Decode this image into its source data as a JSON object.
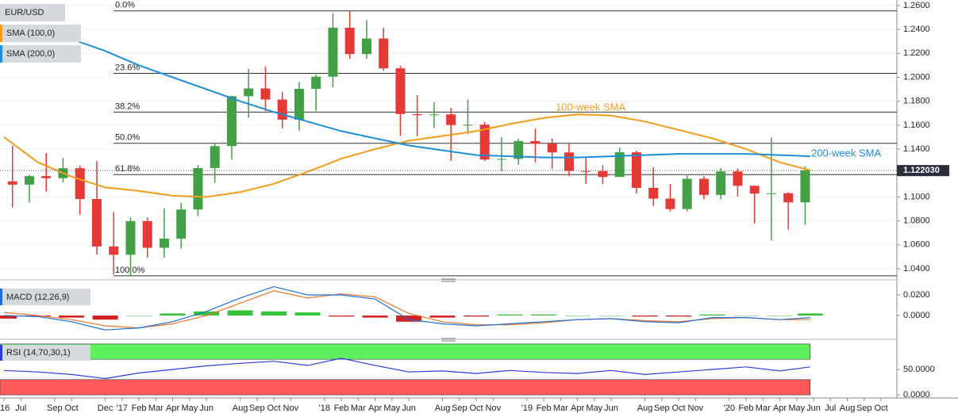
{
  "chart_data": [
    {
      "type": "candlestick",
      "title": "EUR/USD",
      "x": [
        0.5,
        1.5,
        2.5,
        3.5,
        4.5,
        5.5,
        6.5,
        7.5,
        8.5,
        9.5,
        10.5,
        11.5,
        12.5,
        13.5,
        14.5,
        15.5,
        16.5,
        17.5,
        18.5,
        19.5,
        20.5,
        21.5,
        22.5,
        23.5,
        24.5,
        25.5,
        26.5,
        27.5,
        28.5,
        29.5,
        30.5,
        31.5,
        32.5,
        33.5,
        34.5,
        35.5,
        36.5,
        37.5,
        38.5,
        39.5,
        40.5,
        41.5,
        42.5,
        43.5,
        44.5,
        45.5,
        46.5,
        47.5
      ],
      "open": [
        1.113,
        1.1103,
        1.1174,
        1.1157,
        1.124,
        1.0983,
        1.0586,
        1.0517,
        1.0798,
        1.0575,
        1.0652,
        1.0895,
        1.1242,
        1.1425,
        1.1842,
        1.1907,
        1.1814,
        1.1646,
        1.1904,
        1.2005,
        1.2414,
        1.2194,
        1.2324,
        1.2075,
        1.1693,
        1.1684,
        1.169,
        1.1601,
        1.1604,
        1.1313,
        1.1318,
        1.1467,
        1.1445,
        1.1372,
        1.1217,
        1.1216,
        1.1167,
        1.1373,
        1.1076,
        1.0986,
        1.0899,
        1.1152,
        1.1017,
        1.1213,
        1.1093,
        1.1028,
        1.1031,
        1.0955
      ],
      "high": [
        1.1428,
        1.1185,
        1.1366,
        1.1327,
        1.126,
        1.13,
        1.0874,
        1.0829,
        1.0829,
        1.0906,
        1.0951,
        1.1268,
        1.1446,
        1.1846,
        1.207,
        1.2092,
        1.188,
        1.1961,
        1.2023,
        1.2537,
        1.2555,
        1.2476,
        1.2414,
        1.2097,
        1.1852,
        1.1791,
        1.1744,
        1.1815,
        1.1625,
        1.15,
        1.1486,
        1.157,
        1.1489,
        1.1448,
        1.1324,
        1.1265,
        1.1412,
        1.1387,
        1.1249,
        1.1109,
        1.1179,
        1.1175,
        1.124,
        1.1239,
        1.1096,
        1.1496,
        1.1039,
        1.1255
      ],
      "low": [
        1.0912,
        1.0952,
        1.1045,
        1.1122,
        1.0852,
        1.0518,
        1.0352,
        1.034,
        1.0494,
        1.0493,
        1.0569,
        1.0839,
        1.1118,
        1.1313,
        1.1662,
        1.1717,
        1.1574,
        1.1554,
        1.1717,
        1.1916,
        1.2153,
        1.2155,
        1.2056,
        1.151,
        1.1508,
        1.1576,
        1.1301,
        1.1526,
        1.1301,
        1.1216,
        1.1269,
        1.1289,
        1.1234,
        1.1176,
        1.111,
        1.1106,
        1.1181,
        1.1028,
        1.0926,
        1.0879,
        1.0879,
        1.0981,
        1.0981,
        1.1002,
        1.0778,
        1.0636,
        1.0727,
        1.0767
      ],
      "close": [
        1.1103,
        1.1174,
        1.1157,
        1.124,
        1.0983,
        1.0586,
        1.0517,
        1.0798,
        1.0575,
        1.0652,
        1.0895,
        1.1242,
        1.1425,
        1.1842,
        1.1907,
        1.1814,
        1.1646,
        1.1904,
        1.2005,
        1.2414,
        1.2194,
        1.2324,
        1.2075,
        1.1693,
        1.1684,
        1.169,
        1.1601,
        1.1604,
        1.1313,
        1.1318,
        1.1467,
        1.1445,
        1.1372,
        1.1217,
        1.1216,
        1.1167,
        1.1373,
        1.1076,
        1.0986,
        1.0899,
        1.1152,
        1.1017,
        1.1213,
        1.1093,
        1.1028,
        1.1031,
        1.0955,
        1.1221
      ],
      "up_color": "#43a047",
      "down_color": "#e53935",
      "series": [
        {
          "name": "SMA (100,0)",
          "color": "#f59c1a",
          "annotation": "100-week SMA",
          "x": [
            0,
            2,
            4,
            6,
            8,
            10,
            12,
            14,
            16,
            18,
            20,
            22,
            24,
            26,
            28,
            30,
            32,
            34,
            36,
            38,
            40,
            42,
            44,
            46,
            47.8
          ],
          "values": [
            1.15,
            1.129,
            1.117,
            1.108,
            1.105,
            1.101,
            1.1,
            1.104,
            1.111,
            1.121,
            1.132,
            1.14,
            1.147,
            1.151,
            1.155,
            1.161,
            1.166,
            1.169,
            1.168,
            1.163,
            1.156,
            1.149,
            1.14,
            1.129,
            1.1222
          ]
        },
        {
          "name": "SMA (200,0)",
          "color": "#1e8ed6",
          "annotation": "200-week SMA",
          "x": [
            0,
            2,
            4,
            6,
            8,
            10,
            12,
            14,
            16,
            18,
            20,
            22,
            24,
            26,
            28,
            30,
            32,
            34,
            36,
            38,
            40,
            42,
            44,
            46,
            47.8
          ],
          "values": [
            1.242,
            1.238,
            1.232,
            1.222,
            1.21,
            1.2,
            1.19,
            1.18,
            1.171,
            1.163,
            1.155,
            1.149,
            1.143,
            1.139,
            1.135,
            1.134,
            1.133,
            1.133,
            1.134,
            1.135,
            1.136,
            1.136,
            1.136,
            1.135,
            1.134
          ]
        }
      ],
      "fib_levels": [
        {
          "label": "0.0%",
          "value": 1.2555
        },
        {
          "label": "23.6%",
          "value": 1.2033
        },
        {
          "label": "38.2%",
          "value": 1.1709
        },
        {
          "label": "50.0%",
          "value": 1.1448
        },
        {
          "label": "61.8%",
          "value": 1.1187
        },
        {
          "label": "100.0%",
          "value": 1.0341
        }
      ],
      "last_price": {
        "value": 1.12203,
        "label": "1.122030"
      },
      "xlim": [
        -0.24,
        52.94
      ],
      "xticks": [
        {
          "value": 0,
          "label": "'16"
        },
        {
          "value": 1,
          "label": "Jul"
        },
        {
          "value": 3,
          "label": "Sep"
        },
        {
          "value": 4,
          "label": "Oct"
        },
        {
          "value": 6,
          "label": "Dec"
        },
        {
          "value": 7,
          "label": "'17"
        },
        {
          "value": 8,
          "label": "Feb"
        },
        {
          "value": 9,
          "label": "Mar"
        },
        {
          "value": 10,
          "label": "Apr"
        },
        {
          "value": 11,
          "label": "May"
        },
        {
          "value": 12,
          "label": "Jun"
        },
        {
          "value": 14,
          "label": "Aug"
        },
        {
          "value": 15,
          "label": "Sep"
        },
        {
          "value": 16,
          "label": "Oct"
        },
        {
          "value": 17,
          "label": "Nov"
        },
        {
          "value": 19,
          "label": "'18"
        },
        {
          "value": 20,
          "label": "Feb"
        },
        {
          "value": 21,
          "label": "Mar"
        },
        {
          "value": 22,
          "label": "Apr"
        },
        {
          "value": 23,
          "label": "May"
        },
        {
          "value": 24,
          "label": "Jun"
        },
        {
          "value": 26,
          "label": "Aug"
        },
        {
          "value": 27,
          "label": "Sep"
        },
        {
          "value": 28,
          "label": "Oct"
        },
        {
          "value": 29,
          "label": "Nov"
        },
        {
          "value": 31,
          "label": "'19"
        },
        {
          "value": 32,
          "label": "Feb"
        },
        {
          "value": 33,
          "label": "Mar"
        },
        {
          "value": 34,
          "label": "Apr"
        },
        {
          "value": 35,
          "label": "May"
        },
        {
          "value": 36,
          "label": "Jun"
        },
        {
          "value": 38,
          "label": "Aug"
        },
        {
          "value": 39,
          "label": "Sep"
        },
        {
          "value": 40,
          "label": "Oct"
        },
        {
          "value": 41,
          "label": "Nov"
        },
        {
          "value": 43,
          "label": "'20"
        },
        {
          "value": 44,
          "label": "Feb"
        },
        {
          "value": 45,
          "label": "Mar"
        },
        {
          "value": 46,
          "label": "Apr"
        },
        {
          "value": 47,
          "label": "May"
        },
        {
          "value": 48,
          "label": "Jun"
        },
        {
          "value": 49,
          "label": "Jul"
        },
        {
          "value": 50,
          "label": "Aug"
        },
        {
          "value": 51,
          "label": "Sep"
        },
        {
          "value": 52,
          "label": "Oct"
        }
      ],
      "ylim": [
        1.0327,
        1.2646
      ],
      "yticks": [
        {
          "value": 1.04,
          "label": "1.0400"
        },
        {
          "value": 1.06,
          "label": "1.0600"
        },
        {
          "value": 1.08,
          "label": "1.0800"
        },
        {
          "value": 1.1,
          "label": "1.1000"
        },
        {
          "value": 1.12,
          "label": "1.1200"
        },
        {
          "value": 1.14,
          "label": "1.1400"
        },
        {
          "value": 1.16,
          "label": "1.1600"
        },
        {
          "value": 1.18,
          "label": "1.1800"
        },
        {
          "value": 1.2,
          "label": "1.2000"
        },
        {
          "value": 1.22,
          "label": "1.2200"
        },
        {
          "value": 1.24,
          "label": "1.2400"
        },
        {
          "value": 1.26,
          "label": "1.2600"
        }
      ],
      "grid": true
    },
    {
      "type": "macd",
      "title": "MACD (12,26,9)",
      "x": [
        0,
        2,
        4,
        6,
        8,
        10,
        12,
        14,
        16,
        18,
        20,
        22,
        24,
        26,
        28,
        30,
        32,
        34,
        36,
        38,
        40,
        42,
        44,
        46,
        47.8
      ],
      "macd": {
        "color": "#1e6fd6",
        "values": [
          0.0,
          -0.001,
          -0.006,
          -0.014,
          -0.012,
          -0.006,
          0.004,
          0.017,
          0.028,
          0.02,
          0.02,
          0.016,
          -0.004,
          -0.008,
          -0.01,
          -0.008,
          -0.006,
          -0.004,
          -0.003,
          -0.006,
          -0.007,
          -0.002,
          -0.002,
          -0.004,
          -0.002
        ]
      },
      "signal": {
        "color": "#e8772e",
        "values": [
          0.003,
          0.0,
          -0.004,
          -0.01,
          -0.012,
          -0.008,
          0.0,
          0.012,
          0.024,
          0.017,
          0.021,
          0.018,
          0.002,
          -0.006,
          -0.009,
          -0.009,
          -0.007,
          -0.004,
          -0.003,
          -0.005,
          -0.006,
          -0.003,
          -0.002,
          -0.004,
          -0.004
        ]
      },
      "histogram": {
        "up_color": "#35c43b",
        "down_color": "#d32222",
        "values": [
          -0.003,
          -0.001,
          -0.002,
          -0.004,
          0,
          0.002,
          0.004,
          0.005,
          0.004,
          0.003,
          -0.001,
          -0.002,
          -0.006,
          -0.002,
          -0.001,
          0.001,
          0.001,
          0,
          0,
          -0.001,
          -0.001,
          0.001,
          0,
          0,
          0.002
        ]
      },
      "ylim": [
        -0.0208,
        0.0308
      ],
      "yticks": [
        {
          "value": 0.02,
          "label": "0.0200"
        },
        {
          "value": 0,
          "label": "0.0000"
        }
      ]
    },
    {
      "type": "line",
      "title": "RSI (14,70,30,1)",
      "x": [
        0,
        2,
        4,
        6,
        8,
        10,
        12,
        14,
        16,
        18,
        20,
        22,
        24,
        26,
        28,
        30,
        32,
        34,
        36,
        38,
        40,
        42,
        44,
        46,
        47.8
      ],
      "values": [
        48,
        45,
        40,
        32,
        43,
        50,
        57,
        62,
        66,
        58,
        72,
        58,
        45,
        47,
        42,
        48,
        44,
        42,
        48,
        40,
        45,
        50,
        55,
        47,
        55
      ],
      "color": "#2b3fd6",
      "bands": [
        {
          "range": [
            70,
            100
          ],
          "color": "#5ef05e"
        },
        {
          "range": [
            0,
            30
          ],
          "color": "#ff5a5a"
        }
      ],
      "ylim": [
        -3,
        103
      ],
      "yticks": [
        {
          "value": 50,
          "label": "50.0000"
        },
        {
          "value": 0,
          "label": "0.0000"
        }
      ]
    }
  ]
}
